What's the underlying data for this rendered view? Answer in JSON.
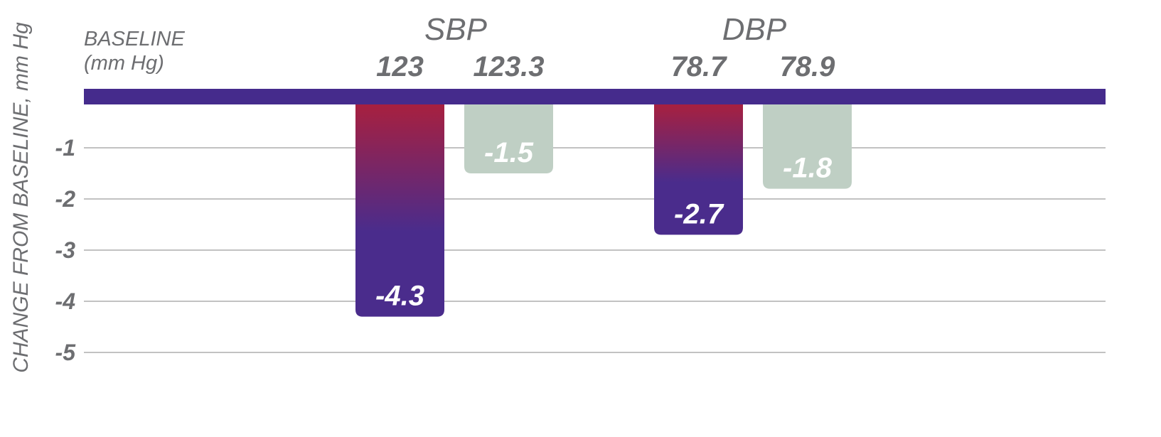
{
  "chart_data": {
    "type": "bar",
    "ylabel": "CHANGE FROM BASELINE, mm Hg",
    "baseline_label_line1": "BASELINE",
    "baseline_label_line2": "(mm Hg)",
    "ylim": [
      -5,
      0
    ],
    "yticks": [
      -1,
      -2,
      -3,
      -4,
      -5
    ],
    "ytick_labels": [
      "-1",
      "-2",
      "-3",
      "-4",
      "-5"
    ],
    "grid": true,
    "groups": [
      {
        "category": "SBP",
        "bars": [
          {
            "baseline": "123",
            "value": -4.3,
            "label": "-4.3",
            "style": "highlight"
          },
          {
            "baseline": "123.3",
            "value": -1.5,
            "label": "-1.5",
            "style": "muted"
          }
        ]
      },
      {
        "category": "DBP",
        "bars": [
          {
            "baseline": "78.7",
            "value": -2.7,
            "label": "-2.7",
            "style": "highlight"
          },
          {
            "baseline": "78.9",
            "value": -1.8,
            "label": "-1.8",
            "style": "muted"
          }
        ]
      }
    ],
    "colors": {
      "baseline_bar": "#452b8c",
      "highlight_top": "#a8203f",
      "highlight_bottom": "#4a2c8c",
      "muted": "#bfcfc4",
      "grid": "#c2c2c2",
      "text": "#6d6e71"
    }
  }
}
